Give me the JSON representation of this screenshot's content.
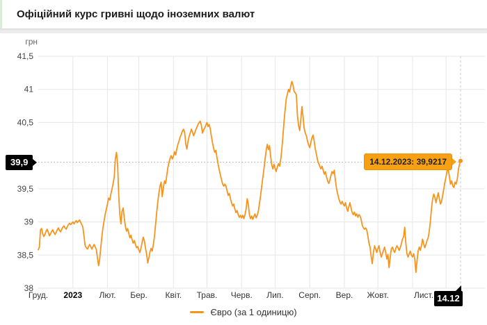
{
  "header": {
    "title": "Офіційний курс гривні щодо іноземних валют"
  },
  "chart_data": {
    "type": "line",
    "title": "Офіційний курс гривні щодо іноземних валют",
    "ylabel": "грн",
    "ylim": [
      38,
      41.5
    ],
    "grid": true,
    "legend_position": "bottom-center",
    "colors": {
      "line": "#f7941d",
      "tooltip_bg": "#f7a012",
      "tooltip_border": "#e69500",
      "crosshair_label_bg": "#000000",
      "gridline": "#e6e6e6",
      "header_accent_green": "#d9edd9"
    },
    "y_ticks": [
      {
        "value": 41.5,
        "label": "41,5"
      },
      {
        "value": 41,
        "label": "41"
      },
      {
        "value": 40.5,
        "label": "40,5"
      },
      {
        "value": 39.5,
        "label": "39,5"
      },
      {
        "value": 39,
        "label": "39"
      },
      {
        "value": 38.5,
        "label": "38,5"
      },
      {
        "value": 38,
        "label": "38"
      }
    ],
    "x_axis_labels": [
      {
        "text": "Груд.",
        "day": 0,
        "bold": false
      },
      {
        "text": "2023",
        "day": 31,
        "bold": true
      },
      {
        "text": "Лют.",
        "day": 62,
        "bold": false
      },
      {
        "text": "Бер.",
        "day": 90,
        "bold": false
      },
      {
        "text": "Квіт.",
        "day": 121,
        "bold": false
      },
      {
        "text": "Трав.",
        "day": 151,
        "bold": false
      },
      {
        "text": "Черв.",
        "day": 182,
        "bold": false
      },
      {
        "text": "Лип.",
        "day": 212,
        "bold": false
      },
      {
        "text": "Серп.",
        "day": 243,
        "bold": false
      },
      {
        "text": "Вер.",
        "day": 274,
        "bold": false
      },
      {
        "text": "Жовт.",
        "day": 304,
        "bold": false
      },
      {
        "text": "Лист.",
        "day": 345,
        "bold": false
      }
    ],
    "month_boundaries_days": [
      31,
      62,
      90,
      121,
      151,
      182,
      212,
      243,
      274,
      304,
      335,
      365
    ],
    "total_days": 378,
    "annotation": {
      "date": "14.12.2023",
      "value": 39.9217,
      "dotted_line_value": 39.9,
      "y_axis_label": "39,9",
      "x_axis_label": "14.12",
      "tooltip_text": "14.12.2023: 39,9217"
    },
    "series": [
      {
        "name": "Євро (за 1 одиницю)",
        "color": "#f7941d",
        "start_day": 0,
        "values": [
          38.58,
          38.62,
          38.88,
          38.9,
          38.82,
          38.78,
          38.81,
          38.86,
          38.89,
          38.84,
          38.79,
          38.82,
          38.86,
          38.88,
          38.84,
          38.81,
          38.84,
          38.88,
          38.91,
          38.87,
          38.85,
          38.89,
          38.92,
          38.94,
          38.91,
          38.89,
          38.93,
          38.96,
          38.98,
          38.96,
          38.98,
          39.0,
          38.97,
          39.0,
          39.02,
          38.99,
          39.01,
          39.03,
          38.99,
          38.96,
          38.92,
          38.78,
          38.64,
          38.61,
          38.59,
          38.63,
          38.66,
          38.62,
          38.59,
          38.63,
          38.66,
          38.62,
          38.58,
          38.46,
          38.34,
          38.44,
          38.62,
          38.78,
          38.92,
          39.02,
          39.12,
          39.2,
          39.28,
          39.36,
          39.33,
          39.42,
          39.5,
          39.58,
          39.68,
          39.95,
          40.05,
          39.88,
          39.42,
          39.12,
          38.97,
          39.16,
          39.21,
          39.06,
          38.93,
          38.86,
          38.9,
          38.83,
          38.76,
          38.8,
          38.73,
          38.68,
          38.72,
          38.66,
          38.61,
          38.63,
          38.58,
          38.54,
          38.61,
          38.69,
          38.77,
          38.71,
          38.6,
          38.51,
          38.38,
          38.46,
          38.55,
          38.6,
          38.56,
          38.66,
          38.78,
          38.96,
          39.14,
          39.3,
          39.44,
          39.54,
          39.6,
          39.38,
          39.52,
          39.62,
          39.58,
          39.7,
          39.82,
          39.9,
          39.96,
          40.0,
          39.95,
          39.99,
          40.06,
          40.01,
          40.1,
          40.17,
          40.22,
          40.28,
          40.32,
          40.37,
          40.4,
          40.35,
          40.18,
          40.1,
          40.21,
          40.29,
          40.34,
          40.4,
          40.36,
          40.3,
          40.34,
          40.39,
          40.43,
          40.47,
          40.5,
          40.52,
          40.46,
          40.34,
          40.39,
          40.42,
          40.46,
          40.5,
          40.44,
          40.47,
          40.4,
          40.29,
          40.19,
          40.11,
          40.05,
          40.08,
          39.97,
          39.87,
          39.79,
          39.71,
          39.64,
          39.57,
          39.54,
          39.57,
          39.54,
          39.47,
          39.4,
          39.43,
          39.35,
          39.29,
          39.24,
          39.27,
          39.19,
          39.14,
          39.17,
          39.11,
          39.07,
          39.1,
          39.06,
          39.1,
          39.05,
          39.11,
          39.19,
          39.35,
          39.27,
          39.11,
          39.05,
          39.09,
          39.04,
          39.08,
          39.12,
          39.06,
          39.1,
          39.16,
          39.28,
          39.4,
          39.54,
          39.67,
          39.8,
          39.94,
          40.08,
          40.17,
          40.09,
          40.15,
          39.99,
          39.86,
          39.8,
          39.87,
          39.81,
          39.76,
          39.83,
          39.88,
          39.84,
          39.94,
          40.1,
          40.3,
          40.52,
          40.7,
          40.86,
          40.93,
          41.0,
          40.96,
          41.05,
          41.12,
          41.07,
          40.97,
          40.95,
          40.92,
          40.6,
          40.45,
          40.38,
          40.55,
          40.74,
          40.59,
          40.41,
          40.34,
          40.3,
          40.22,
          40.16,
          40.12,
          40.2,
          40.27,
          40.31,
          40.22,
          40.1,
          40.02,
          39.93,
          39.88,
          39.84,
          39.8,
          39.84,
          39.78,
          39.72,
          39.76,
          39.68,
          39.62,
          39.58,
          39.63,
          39.7,
          39.76,
          39.73,
          39.78,
          39.62,
          39.5,
          39.42,
          39.35,
          39.3,
          39.27,
          39.31,
          39.27,
          39.24,
          39.29,
          39.21,
          39.16,
          39.23,
          39.29,
          39.21,
          39.14,
          39.11,
          39.15,
          39.09,
          39.12,
          39.07,
          39.11,
          39.09,
          39.04,
          38.95,
          38.91,
          38.89,
          38.91,
          38.88,
          38.79,
          38.68,
          38.62,
          38.48,
          38.37,
          38.54,
          38.64,
          38.59,
          38.54,
          38.6,
          38.64,
          38.54,
          38.47,
          38.52,
          38.57,
          38.62,
          38.54,
          38.44,
          38.51,
          38.31,
          38.46,
          38.59,
          38.62,
          38.57,
          38.54,
          38.6,
          38.64,
          38.61,
          38.57,
          38.61,
          38.67,
          38.74,
          38.77,
          38.92,
          38.69,
          38.52,
          38.47,
          38.52,
          38.56,
          38.5,
          38.47,
          38.52,
          38.44,
          38.24,
          38.41,
          38.56,
          38.62,
          38.57,
          38.64,
          38.74,
          38.67,
          38.61,
          38.66,
          38.72,
          38.76,
          38.86,
          39.01,
          39.2,
          39.35,
          39.42,
          39.37,
          39.29,
          39.37,
          39.44,
          39.35,
          39.27,
          39.31,
          39.4,
          39.5,
          39.6,
          39.68,
          39.77,
          39.79,
          39.69,
          39.57,
          39.62,
          39.54,
          39.52,
          39.6,
          39.57,
          39.64,
          39.78,
          39.87,
          39.9217
        ]
      }
    ]
  }
}
